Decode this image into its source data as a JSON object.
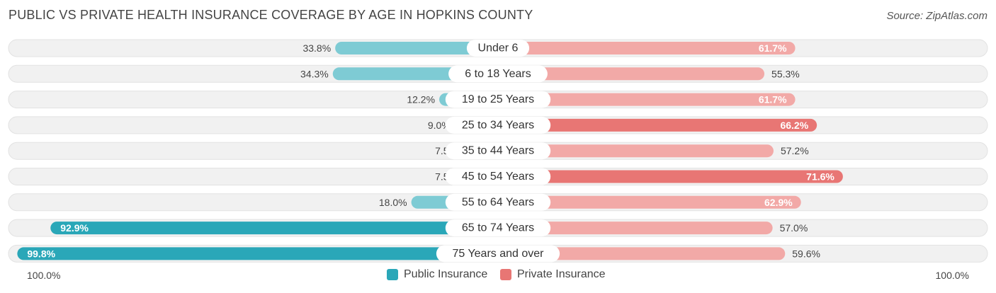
{
  "header": {
    "title": "PUBLIC VS PRIVATE HEALTH INSURANCE COVERAGE BY AGE IN HOPKINS COUNTY",
    "source": "Source: ZipAtlas.com"
  },
  "colors": {
    "public": "#2aa7b8",
    "public_light": "#7ecbd4",
    "private": "#e87674",
    "private_light": "#f2a9a7",
    "row_bg": "#f1f1f1"
  },
  "chart_data": {
    "type": "bar",
    "orientation": "diverging-horizontal",
    "categories": [
      "Under 6",
      "6 to 18 Years",
      "19 to 25 Years",
      "25 to 34 Years",
      "35 to 44 Years",
      "45 to 54 Years",
      "55 to 64 Years",
      "65 to 74 Years",
      "75 Years and over"
    ],
    "series": [
      {
        "name": "Public Insurance",
        "values": [
          33.8,
          34.3,
          12.2,
          9.0,
          7.5,
          7.5,
          18.0,
          92.9,
          99.8
        ]
      },
      {
        "name": "Private Insurance",
        "values": [
          61.7,
          55.3,
          61.7,
          66.2,
          57.2,
          71.6,
          62.9,
          57.0,
          59.6
        ]
      }
    ],
    "value_labels": {
      "public": [
        "33.8%",
        "34.3%",
        "12.2%",
        "9.0%",
        "7.5%",
        "7.5%",
        "18.0%",
        "92.9%",
        "99.8%"
      ],
      "private": [
        "61.7%",
        "55.3%",
        "61.7%",
        "66.2%",
        "57.2%",
        "71.6%",
        "62.9%",
        "57.0%",
        "59.6%"
      ]
    },
    "xlim": [
      -100,
      100
    ],
    "axis_labels": {
      "left": "100.0%",
      "right": "100.0%"
    },
    "legend_position": "bottom-center"
  },
  "legend": {
    "public_label": "Public Insurance",
    "private_label": "Private Insurance"
  }
}
